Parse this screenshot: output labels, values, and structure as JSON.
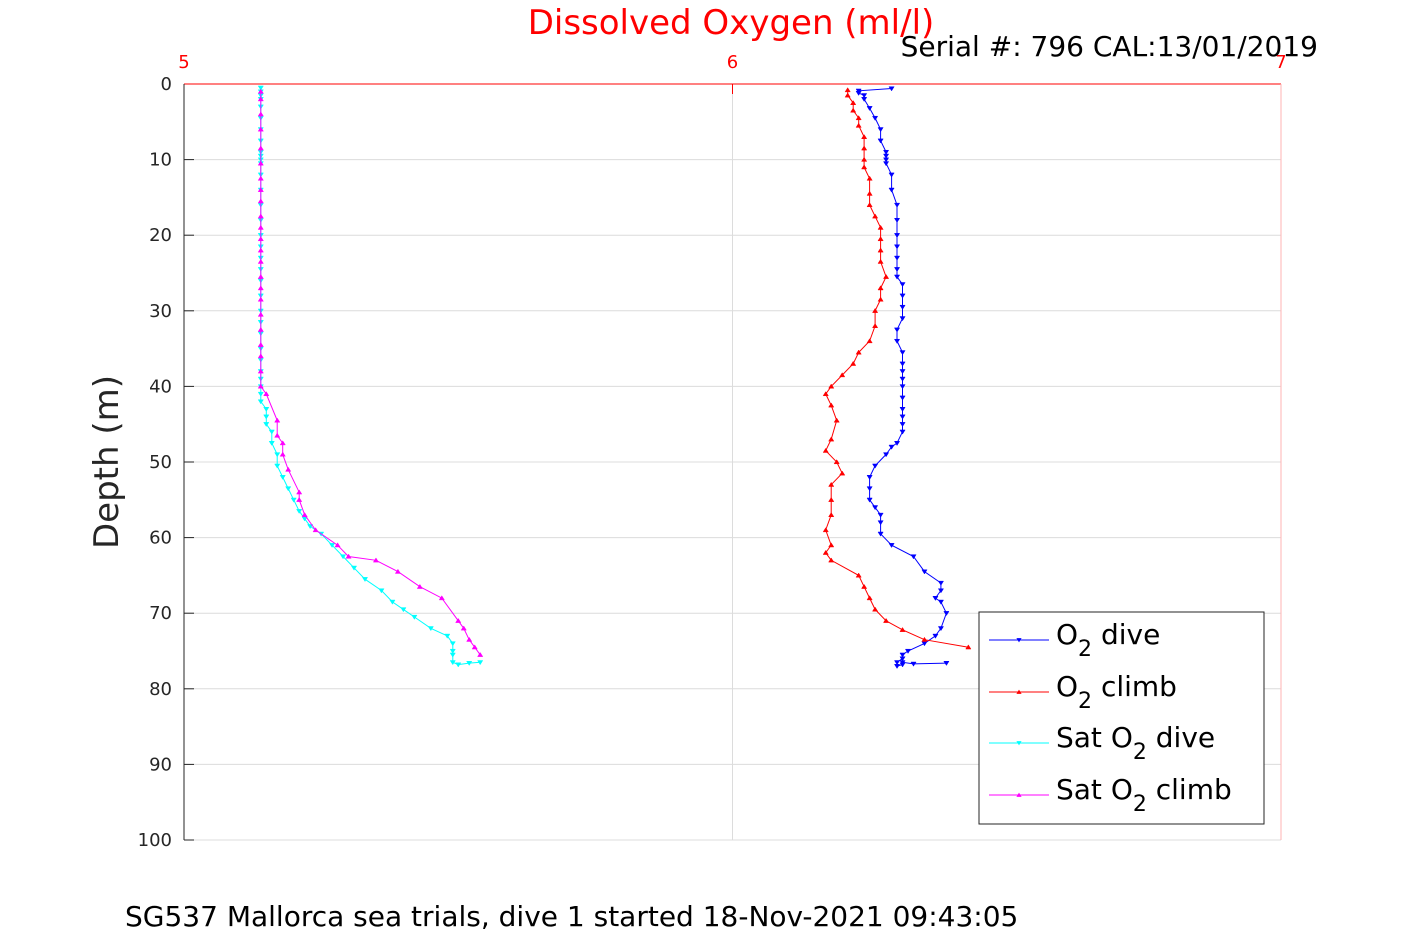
{
  "figure": {
    "title": "Dissolved Oxygen (ml/l)",
    "serial_label": "Serial #: 796  CAL:13/01/2019",
    "caption": "SG537 Mallorca sea trials, dive 1 started 18-Nov-2021 09:43:05"
  },
  "colors": {
    "title": "#ff0000",
    "top_axis": "#ff0000",
    "grid": "#dcdcdc",
    "axis": "#262626"
  },
  "chart_data": {
    "type": "line",
    "title": "Dissolved Oxygen (ml/l)",
    "xlabel": "",
    "ylabel": "Depth (m)",
    "xlim": [
      5,
      7
    ],
    "ylim": [
      0,
      100
    ],
    "y_reversed": true,
    "x_axis_location": "top",
    "xticks": [
      5,
      6,
      7
    ],
    "yticks": [
      0,
      10,
      20,
      30,
      40,
      50,
      60,
      70,
      80,
      90,
      100
    ],
    "grid": true,
    "legend_location": "lower-right",
    "series": [
      {
        "name": "O2 dive",
        "legend": {
          "base": "O",
          "sub": "2",
          "suffix": " dive",
          "prefix": ""
        },
        "color": "#0000ff",
        "marker": "triangle-down",
        "x": [
          6.29,
          6.23,
          6.23,
          6.24,
          6.24,
          6.25,
          6.26,
          6.27,
          6.27,
          6.28,
          6.28,
          6.28,
          6.28,
          6.29,
          6.29,
          6.3,
          6.3,
          6.3,
          6.3,
          6.3,
          6.3,
          6.3,
          6.31,
          6.31,
          6.31,
          6.31,
          6.3,
          6.3,
          6.31,
          6.31,
          6.31,
          6.31,
          6.31,
          6.31,
          6.31,
          6.31,
          6.31,
          6.31,
          6.3,
          6.29,
          6.28,
          6.26,
          6.25,
          6.25,
          6.25,
          6.26,
          6.27,
          6.27,
          6.27,
          6.29,
          6.33,
          6.35,
          6.38,
          6.38,
          6.37,
          6.38,
          6.39,
          6.38,
          6.37,
          6.35,
          6.32,
          6.31,
          6.31,
          6.3,
          6.3,
          6.31,
          6.31,
          6.33,
          6.39
        ],
        "y": [
          0.6,
          0.9,
          1.2,
          1.5,
          2.0,
          3.2,
          4.5,
          6.0,
          7.5,
          9.0,
          9.5,
          10.0,
          10.5,
          12.0,
          14.0,
          16.0,
          18.0,
          20.0,
          21.5,
          23.0,
          24.5,
          25.5,
          26.5,
          28.0,
          29.5,
          31.0,
          32.5,
          34.0,
          35.5,
          37.0,
          38.0,
          39.0,
          40.0,
          41.5,
          43.0,
          44.0,
          45.0,
          46.0,
          47.5,
          48.0,
          49.0,
          50.5,
          52.0,
          53.5,
          55.0,
          56.0,
          57.0,
          58.0,
          59.5,
          61.0,
          62.5,
          64.5,
          66.0,
          67.0,
          68.0,
          68.5,
          70.0,
          72.0,
          73.0,
          74.0,
          75.0,
          75.5,
          76.0,
          76.5,
          77.0,
          76.8,
          76.5,
          76.7,
          76.6
        ]
      },
      {
        "name": "O2 climb",
        "legend": {
          "base": "O",
          "sub": "2",
          "suffix": " climb",
          "prefix": ""
        },
        "color": "#ff0000",
        "marker": "triangle-up",
        "x": [
          6.43,
          6.35,
          6.31,
          6.28,
          6.26,
          6.25,
          6.24,
          6.23,
          6.18,
          6.17,
          6.18,
          6.17,
          6.18,
          6.18,
          6.18,
          6.2,
          6.19,
          6.17,
          6.18,
          6.19,
          6.18,
          6.17,
          6.18,
          6.2,
          6.22,
          6.23,
          6.25,
          6.26,
          6.26,
          6.27,
          6.27,
          6.28,
          6.27,
          6.27,
          6.27,
          6.27,
          6.26,
          6.25,
          6.25,
          6.25,
          6.24,
          6.24,
          6.24,
          6.24,
          6.23,
          6.23,
          6.22,
          6.22,
          6.21,
          6.21
        ],
        "y": [
          74.5,
          73.5,
          72.2,
          71.0,
          69.5,
          68.0,
          66.5,
          65.0,
          63.0,
          62.0,
          61.0,
          59.0,
          57.0,
          55.0,
          53.0,
          51.5,
          50.0,
          48.5,
          47.0,
          44.5,
          42.5,
          41.0,
          40.0,
          38.5,
          37.0,
          35.5,
          34.0,
          32.0,
          30.0,
          28.5,
          27.0,
          25.5,
          23.5,
          22.0,
          20.5,
          19.0,
          17.5,
          16.0,
          14.5,
          12.5,
          11.0,
          10.0,
          8.5,
          7.0,
          5.5,
          4.5,
          3.5,
          2.5,
          1.5,
          0.8
        ]
      },
      {
        "name": "Sat O2 dive",
        "legend": {
          "base": "O",
          "sub": "2",
          "suffix": " dive",
          "prefix": "Sat "
        },
        "color": "#00ffff",
        "marker": "triangle-down",
        "x": [
          5.14,
          5.14,
          5.14,
          5.14,
          5.14,
          5.14,
          5.14,
          5.14,
          5.14,
          5.14,
          5.14,
          5.14,
          5.14,
          5.14,
          5.14,
          5.14,
          5.14,
          5.14,
          5.14,
          5.14,
          5.14,
          5.14,
          5.14,
          5.14,
          5.14,
          5.14,
          5.14,
          5.14,
          5.14,
          5.14,
          5.14,
          5.14,
          5.15,
          5.15,
          5.15,
          5.16,
          5.16,
          5.17,
          5.17,
          5.18,
          5.19,
          5.2,
          5.21,
          5.22,
          5.23,
          5.25,
          5.27,
          5.29,
          5.31,
          5.33,
          5.36,
          5.38,
          5.4,
          5.42,
          5.45,
          5.48,
          5.49,
          5.49,
          5.49,
          5.49,
          5.5,
          5.52,
          5.54
        ],
        "y": [
          0.5,
          1.0,
          1.5,
          2.0,
          3.0,
          4.5,
          6.0,
          7.5,
          9.0,
          9.5,
          10.0,
          10.5,
          12.0,
          14.0,
          16.0,
          18.0,
          20.0,
          21.5,
          23.0,
          24.5,
          26.0,
          28.0,
          30.0,
          31.5,
          33.0,
          35.0,
          36.5,
          38.0,
          39.0,
          40.0,
          41.0,
          42.0,
          43.0,
          44.0,
          45.0,
          46.0,
          47.5,
          49.0,
          50.5,
          52.0,
          53.5,
          55.0,
          56.5,
          57.5,
          58.5,
          59.5,
          61.0,
          62.5,
          64.0,
          65.5,
          67.0,
          68.5,
          69.5,
          70.5,
          72.0,
          73.0,
          74.0,
          75.0,
          75.5,
          76.5,
          76.8,
          76.6,
          76.5
        ]
      },
      {
        "name": "Sat O2 climb",
        "legend": {
          "base": "O",
          "sub": "2",
          "suffix": " climb",
          "prefix": "Sat "
        },
        "color": "#ff00ff",
        "marker": "triangle-up",
        "x": [
          5.54,
          5.53,
          5.52,
          5.51,
          5.5,
          5.47,
          5.43,
          5.39,
          5.35,
          5.3,
          5.28,
          5.24,
          5.22,
          5.21,
          5.21,
          5.19,
          5.18,
          5.18,
          5.17,
          5.17,
          5.15,
          5.14,
          5.14,
          5.14,
          5.14,
          5.14,
          5.14,
          5.14,
          5.14,
          5.14,
          5.14,
          5.14,
          5.14,
          5.14,
          5.14,
          5.14,
          5.14,
          5.14,
          5.14,
          5.14,
          5.14,
          5.14,
          5.14,
          5.14
        ],
        "y": [
          75.5,
          74.5,
          73.5,
          72.0,
          71.0,
          68.0,
          66.5,
          64.5,
          63.0,
          62.5,
          61.0,
          59.0,
          57.0,
          55.0,
          54.0,
          51.0,
          49.0,
          47.5,
          46.5,
          44.5,
          41.0,
          40.0,
          38.0,
          36.0,
          34.5,
          32.5,
          30.5,
          28.5,
          27.0,
          25.5,
          23.5,
          22.0,
          20.5,
          19.0,
          17.5,
          15.5,
          14.0,
          12.5,
          10.5,
          8.5,
          6.0,
          4.0,
          2.0,
          1.0
        ]
      }
    ]
  }
}
